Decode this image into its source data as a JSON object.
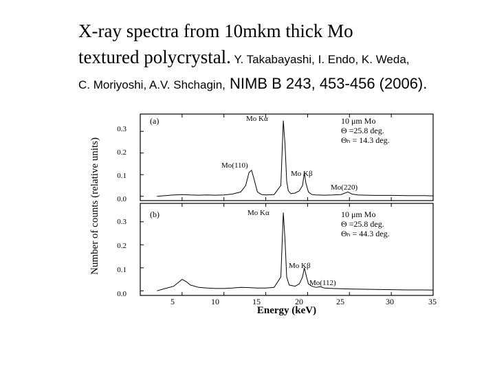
{
  "slide": {
    "title_line1": "X-ray spectra from 10mkm thick  Mo",
    "title_line2_main": "textured polycrystal.",
    "title_line2_authors": " Y. Takabayashi, I. Endo, K. Weda,",
    "title_line3_authors": "C. Moriyoshi,  A.V. Shchagin,",
    "title_line3_ref": " NIMB B 243, 453-456 (2006)."
  },
  "chart_data": [
    {
      "type": "line",
      "panel_label": "(a)",
      "info_line1": "10 μm Mo",
      "info_line2": "Θ =25.8 deg.",
      "info_line3": "Θₕ = 14.3 deg.",
      "xlabel": "Energy (keV)",
      "ylabel": "Number of counts (relative units)",
      "xlim": [
        0,
        35
      ],
      "ylim": [
        -0.02,
        0.38
      ],
      "yticks": [
        "0.0",
        "0.1",
        "0.2",
        "0.3"
      ],
      "annotations": [
        "Mo Kα",
        "Mo(110)",
        "Mo Kβ",
        "Mo(220)"
      ],
      "series": [
        {
          "x": [
            2,
            3,
            4,
            5,
            6,
            7,
            8,
            9,
            10,
            11,
            12,
            12.6,
            13,
            13.3,
            13.6,
            14,
            14.5,
            15,
            16,
            16.8,
            17.1,
            17.3,
            17.5,
            17.7,
            18,
            18.5,
            19,
            19.4,
            19.6,
            19.8,
            20.1,
            20.5,
            21,
            22,
            23,
            24,
            24.8,
            25.3,
            26,
            27,
            28,
            30,
            32,
            34,
            35
          ],
          "y": [
            0.0,
            0.003,
            0.006,
            0.008,
            0.006,
            0.005,
            0.006,
            0.005,
            0.006,
            0.01,
            0.02,
            0.05,
            0.11,
            0.12,
            0.08,
            0.02,
            0.008,
            0.006,
            0.008,
            0.05,
            0.35,
            0.24,
            0.07,
            0.025,
            0.012,
            0.015,
            0.025,
            0.05,
            0.11,
            0.06,
            0.02,
            0.008,
            0.006,
            0.005,
            0.006,
            0.008,
            0.02,
            0.01,
            0.006,
            0.005,
            0.004,
            0.004,
            0.003,
            0.003,
            0.002
          ]
        }
      ]
    },
    {
      "type": "line",
      "panel_label": "(b)",
      "info_line1": "10 μm Mo",
      "info_line2": "Θ =25.8 deg.",
      "info_line3": "Θₕ = 44.3 deg.",
      "xlabel": "Energy (keV)",
      "ylabel": "Number of counts (relative units)",
      "xlim": [
        0,
        35
      ],
      "ylim": [
        -0.02,
        0.38
      ],
      "xticks": [
        "5",
        "10",
        "15",
        "20",
        "25",
        "30",
        "35"
      ],
      "yticks": [
        "0.0",
        "0.1",
        "0.2",
        "0.3"
      ],
      "annotations": [
        "Mo Kα",
        "Mo Kβ",
        "Mo(112)"
      ],
      "series": [
        {
          "x": [
            2,
            3,
            4,
            4.5,
            5,
            5.5,
            6,
            7,
            8,
            9,
            10,
            11,
            12,
            13,
            14,
            15,
            16,
            16.8,
            17.1,
            17.3,
            17.5,
            17.8,
            18.5,
            19,
            19.4,
            19.6,
            19.8,
            20.1,
            20.5,
            21,
            21.5,
            22,
            23,
            25,
            28,
            30,
            32,
            34,
            35
          ],
          "y": [
            0.0,
            0.01,
            0.02,
            0.035,
            0.05,
            0.04,
            0.025,
            0.015,
            0.012,
            0.01,
            0.01,
            0.012,
            0.015,
            0.014,
            0.012,
            0.012,
            0.015,
            0.06,
            0.34,
            0.22,
            0.06,
            0.025,
            0.02,
            0.03,
            0.06,
            0.1,
            0.07,
            0.03,
            0.02,
            0.015,
            0.018,
            0.012,
            0.01,
            0.008,
            0.006,
            0.005,
            0.004,
            0.004,
            0.003
          ]
        }
      ]
    }
  ]
}
